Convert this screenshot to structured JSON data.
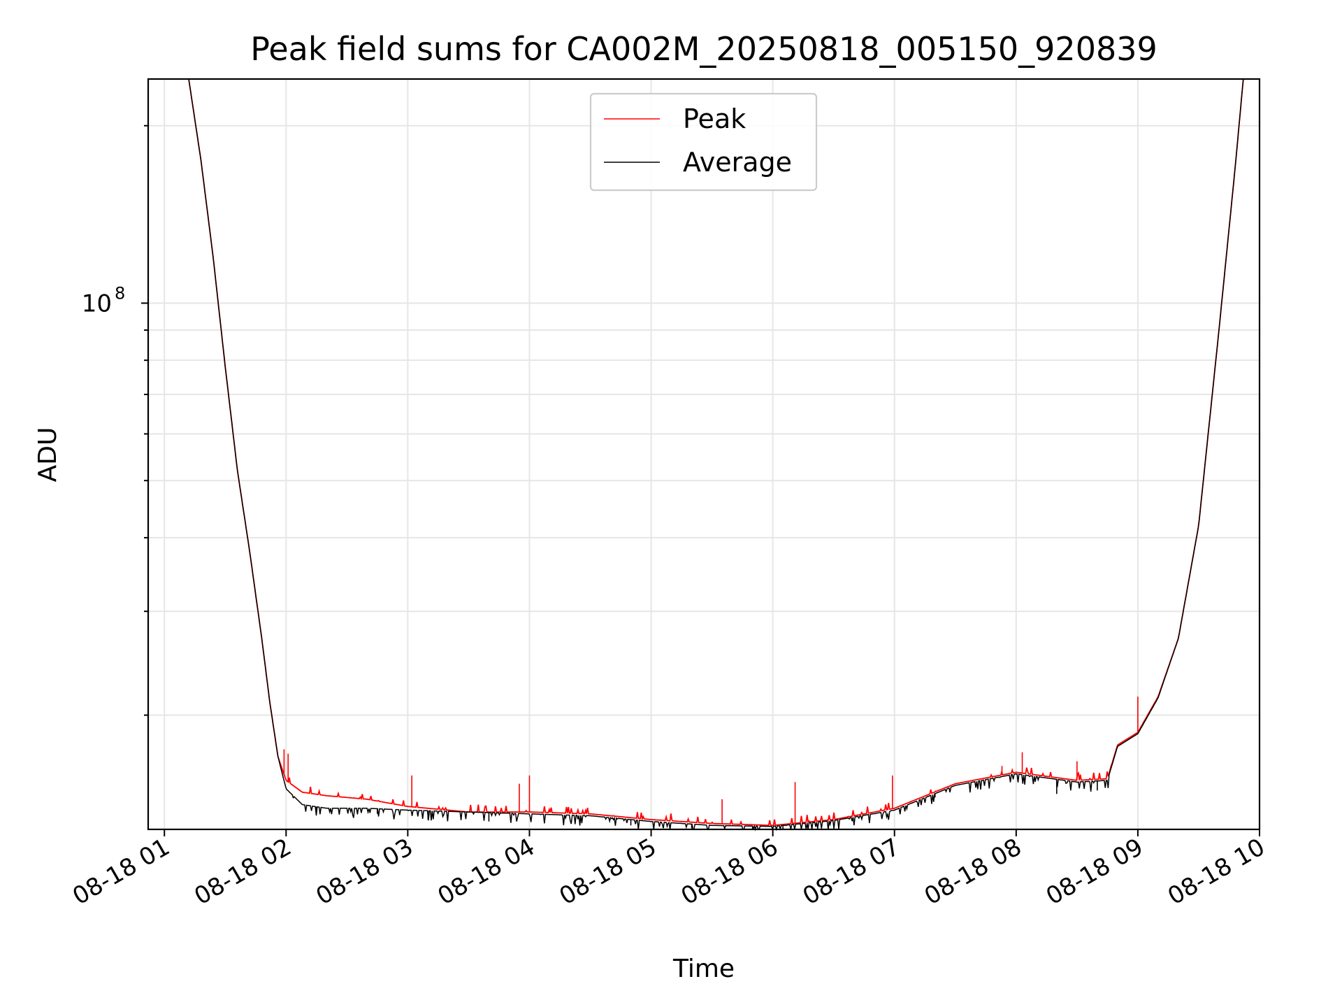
{
  "chart_data": {
    "type": "line",
    "title": "Peak field sums for CA002M_20250818_005150_920839",
    "xlabel": "Time",
    "ylabel": "ADU",
    "yscale": "log",
    "grid": true,
    "legend_placement": "top-center",
    "x_ticks": [
      "08-18 01",
      "08-18 02",
      "08-18 03",
      "08-18 04",
      "08-18 05",
      "08-18 06",
      "08-18 07",
      "08-18 08",
      "08-18 09",
      "08-18 10"
    ],
    "y_tick_base": "10",
    "y_tick_exp": "8",
    "y_major_tick_value": 100000000,
    "xlim": [
      "2025-08-18 00:52",
      "2025-08-18 10:00"
    ],
    "ylim": [
      12800000,
      240000000
    ],
    "series": [
      {
        "name": "Peak",
        "color": "#ff0000",
        "points": [
          [
            "2025-08-18 01:12",
            240000000
          ],
          [
            "2025-08-18 01:18",
            175000000
          ],
          [
            "2025-08-18 01:24",
            120000000
          ],
          [
            "2025-08-18 01:30",
            78000000
          ],
          [
            "2025-08-18 01:36",
            52000000
          ],
          [
            "2025-08-18 01:42",
            38000000
          ],
          [
            "2025-08-18 01:48",
            27000000
          ],
          [
            "2025-08-18 01:52",
            21000000
          ],
          [
            "2025-08-18 01:56",
            17000000
          ],
          [
            "2025-08-18 02:00",
            15500000
          ],
          [
            "2025-08-18 02:08",
            14800000
          ],
          [
            "2025-08-18 02:20",
            14600000
          ],
          [
            "2025-08-18 02:40",
            14400000
          ],
          [
            "2025-08-18 03:00",
            14000000
          ],
          [
            "2025-08-18 03:30",
            13700000
          ],
          [
            "2025-08-18 04:00",
            13700000
          ],
          [
            "2025-08-18 04:30",
            13600000
          ],
          [
            "2025-08-18 05:00",
            13300000
          ],
          [
            "2025-08-18 05:30",
            13100000
          ],
          [
            "2025-08-18 06:00",
            13000000
          ],
          [
            "2025-08-18 06:30",
            13300000
          ],
          [
            "2025-08-18 07:00",
            13900000
          ],
          [
            "2025-08-18 07:30",
            15300000
          ],
          [
            "2025-08-18 08:00",
            16000000
          ],
          [
            "2025-08-18 08:30",
            15500000
          ],
          [
            "2025-08-18 08:45",
            15600000
          ],
          [
            "2025-08-18 08:50",
            17800000
          ],
          [
            "2025-08-18 09:00",
            18700000
          ],
          [
            "2025-08-18 09:10",
            21500000
          ],
          [
            "2025-08-18 09:20",
            27000000
          ],
          [
            "2025-08-18 09:30",
            42000000
          ],
          [
            "2025-08-18 09:40",
            90000000
          ],
          [
            "2025-08-18 09:48",
            170000000
          ],
          [
            "2025-08-18 09:52",
            240000000
          ]
        ],
        "spikes": [
          [
            "2025-08-18 01:59",
            17500000
          ],
          [
            "2025-08-18 02:01",
            17200000
          ],
          [
            "2025-08-18 03:02",
            15800000
          ],
          [
            "2025-08-18 03:55",
            15300000
          ],
          [
            "2025-08-18 04:00",
            15800000
          ],
          [
            "2025-08-18 05:35",
            14400000
          ],
          [
            "2025-08-18 06:11",
            15400000
          ],
          [
            "2025-08-18 06:59",
            15800000
          ],
          [
            "2025-08-18 07:53",
            16400000
          ],
          [
            "2025-08-18 08:03",
            17300000
          ],
          [
            "2025-08-18 08:30",
            16700000
          ],
          [
            "2025-08-18 09:00",
            21500000
          ]
        ]
      },
      {
        "name": "Average",
        "color": "#000000",
        "points": [
          [
            "2025-08-18 01:12",
            240000000
          ],
          [
            "2025-08-18 01:18",
            175000000
          ],
          [
            "2025-08-18 01:24",
            120000000
          ],
          [
            "2025-08-18 01:30",
            78000000
          ],
          [
            "2025-08-18 01:36",
            52000000
          ],
          [
            "2025-08-18 01:42",
            38000000
          ],
          [
            "2025-08-18 01:48",
            27000000
          ],
          [
            "2025-08-18 01:52",
            21000000
          ],
          [
            "2025-08-18 01:56",
            17000000
          ],
          [
            "2025-08-18 02:00",
            15000000
          ],
          [
            "2025-08-18 02:08",
            14100000
          ],
          [
            "2025-08-18 02:20",
            13900000
          ],
          [
            "2025-08-18 02:40",
            13900000
          ],
          [
            "2025-08-18 03:00",
            13800000
          ],
          [
            "2025-08-18 03:30",
            13700000
          ],
          [
            "2025-08-18 04:00",
            13600000
          ],
          [
            "2025-08-18 04:30",
            13500000
          ],
          [
            "2025-08-18 05:00",
            13200000
          ],
          [
            "2025-08-18 05:30",
            13000000
          ],
          [
            "2025-08-18 06:00",
            12950000
          ],
          [
            "2025-08-18 06:30",
            13250000
          ],
          [
            "2025-08-18 07:00",
            13800000
          ],
          [
            "2025-08-18 07:30",
            15200000
          ],
          [
            "2025-08-18 08:00",
            15900000
          ],
          [
            "2025-08-18 08:30",
            15400000
          ],
          [
            "2025-08-18 08:45",
            15500000
          ],
          [
            "2025-08-18 08:50",
            17700000
          ],
          [
            "2025-08-18 09:00",
            18600000
          ],
          [
            "2025-08-18 09:10",
            21400000
          ],
          [
            "2025-08-18 09:20",
            27000000
          ],
          [
            "2025-08-18 09:30",
            42000000
          ],
          [
            "2025-08-18 09:40",
            90000000
          ],
          [
            "2025-08-18 09:48",
            170000000
          ],
          [
            "2025-08-18 09:52",
            240000000
          ]
        ],
        "dips": [
          [
            "2025-08-18 02:15",
            13700000
          ],
          [
            "2025-08-18 02:45",
            13600000
          ],
          [
            "2025-08-18 03:10",
            13300000
          ],
          [
            "2025-08-18 03:40",
            13200000
          ],
          [
            "2025-08-18 04:50",
            13000000
          ],
          [
            "2025-08-18 05:20",
            12850000
          ],
          [
            "2025-08-18 05:50",
            12800000
          ],
          [
            "2025-08-18 06:05",
            12800000
          ],
          [
            "2025-08-18 07:20",
            14500000
          ],
          [
            "2025-08-18 08:20",
            14700000
          ],
          [
            "2025-08-18 08:40",
            14900000
          ]
        ]
      }
    ]
  }
}
